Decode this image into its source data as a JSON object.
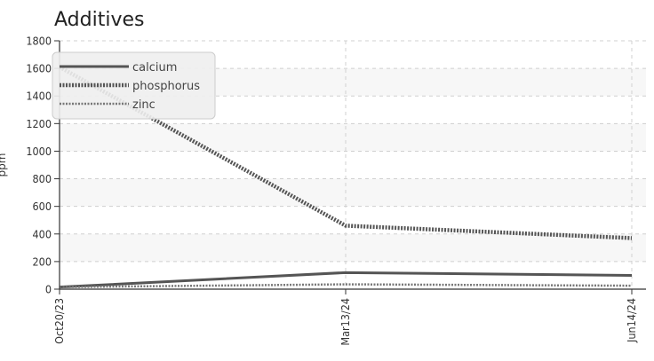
{
  "chart_data": {
    "type": "line",
    "title": "Additives",
    "xlabel": "",
    "ylabel": "ppm",
    "x": [
      "Oct20/23",
      "Mar13/24",
      "Jun14/24"
    ],
    "ylim": [
      0,
      1800
    ],
    "yticks": [
      0,
      200,
      400,
      600,
      800,
      1000,
      1200,
      1400,
      1600,
      1800
    ],
    "grid": true,
    "legend_position": "top-left",
    "series": [
      {
        "name": "calcium",
        "values": [
          15,
          120,
          100
        ],
        "color": "#555555",
        "style": "solid"
      },
      {
        "name": "phosphorus",
        "values": [
          1610,
          460,
          370
        ],
        "color": "#555555",
        "style": "dotted"
      },
      {
        "name": "zinc",
        "values": [
          15,
          35,
          25
        ],
        "color": "#777777",
        "style": "dashed"
      }
    ]
  }
}
